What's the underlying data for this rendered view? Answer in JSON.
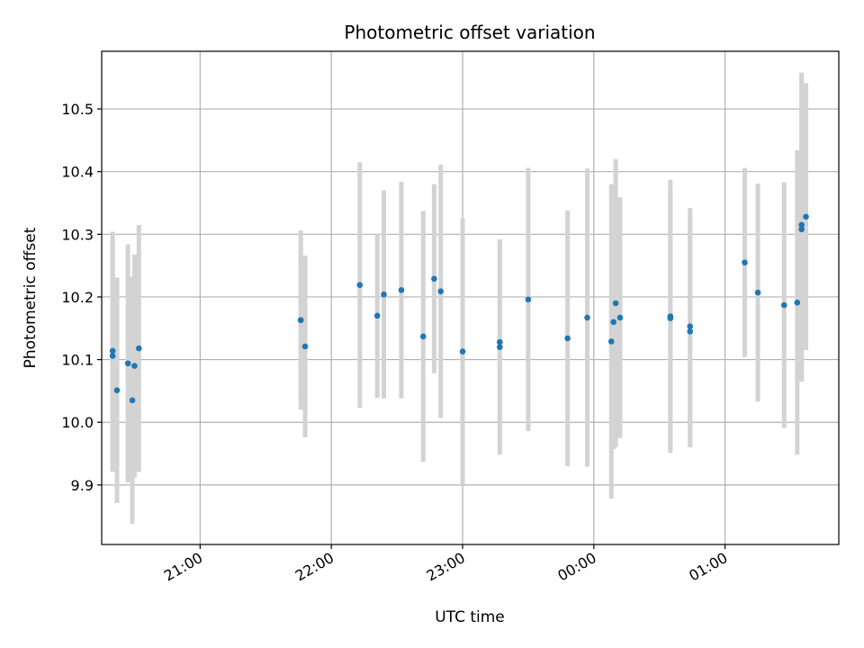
{
  "chart_data": {
    "type": "scatter",
    "title": "Photometric offset variation",
    "xlabel": "UTC time",
    "ylabel": "Photometric offset",
    "x_unit": "time",
    "xlim": [
      "20:15",
      "01:52"
    ],
    "ylim": [
      9.805,
      10.592
    ],
    "x_ticks": [
      "21:00",
      "22:00",
      "23:00",
      "00:00",
      "01:00"
    ],
    "y_ticks": [
      9.9,
      10.0,
      10.1,
      10.2,
      10.3,
      10.4,
      10.5
    ],
    "y_tick_labels": [
      "9.9",
      "10.0",
      "10.1",
      "10.2",
      "10.3",
      "10.4",
      "10.5"
    ],
    "grid": true,
    "marker_color": "#1f77b4",
    "errorbar_color": "#d3d3d3",
    "points": [
      {
        "time": "20:20",
        "y": 10.114,
        "err": 0.19
      },
      {
        "time": "20:20",
        "y": 10.106,
        "err": 0.185
      },
      {
        "time": "20:22",
        "y": 10.051,
        "err": 0.18
      },
      {
        "time": "20:27",
        "y": 10.094,
        "err": 0.19
      },
      {
        "time": "20:29",
        "y": 10.035,
        "err": 0.197
      },
      {
        "time": "20:30",
        "y": 10.09,
        "err": 0.178
      },
      {
        "time": "20:32",
        "y": 10.118,
        "err": 0.197
      },
      {
        "time": "21:46",
        "y": 10.163,
        "err": 0.143
      },
      {
        "time": "21:46",
        "y": 10.163,
        "err": 0.12
      },
      {
        "time": "21:48",
        "y": 10.121,
        "err": 0.145
      },
      {
        "time": "22:13",
        "y": 10.219,
        "err": 0.196
      },
      {
        "time": "22:21",
        "y": 10.17,
        "err": 0.131
      },
      {
        "time": "22:24",
        "y": 10.204,
        "err": 0.166
      },
      {
        "time": "22:32",
        "y": 10.211,
        "err": 0.173
      },
      {
        "time": "22:42",
        "y": 10.137,
        "err": 0.2
      },
      {
        "time": "22:47",
        "y": 10.229,
        "err": 0.151
      },
      {
        "time": "22:50",
        "y": 10.209,
        "err": 0.202
      },
      {
        "time": "23:00",
        "y": 10.113,
        "err": 0.213
      },
      {
        "time": "23:17",
        "y": 10.128,
        "err": 0.163
      },
      {
        "time": "23:17",
        "y": 10.12,
        "err": 0.172
      },
      {
        "time": "23:30",
        "y": 10.196,
        "err": 0.21
      },
      {
        "time": "23:48",
        "y": 10.134,
        "err": 0.204
      },
      {
        "time": "23:57",
        "y": 10.167,
        "err": 0.238
      },
      {
        "time": "00:08",
        "y": 10.129,
        "err": 0.251
      },
      {
        "time": "00:09",
        "y": 10.16,
        "err": 0.203
      },
      {
        "time": "00:10",
        "y": 10.19,
        "err": 0.23
      },
      {
        "time": "00:12",
        "y": 10.167,
        "err": 0.192
      },
      {
        "time": "00:35",
        "y": 10.169,
        "err": 0.218
      },
      {
        "time": "00:35",
        "y": 10.166,
        "err": 0.205
      },
      {
        "time": "00:44",
        "y": 10.153,
        "err": 0.189
      },
      {
        "time": "00:44",
        "y": 10.145,
        "err": 0.185
      },
      {
        "time": "01:09",
        "y": 10.255,
        "err": 0.151
      },
      {
        "time": "01:15",
        "y": 10.207,
        "err": 0.174
      },
      {
        "time": "01:27",
        "y": 10.187,
        "err": 0.196
      },
      {
        "time": "01:33",
        "y": 10.191,
        "err": 0.243
      },
      {
        "time": "01:35",
        "y": 10.315,
        "err": 0.243
      },
      {
        "time": "01:35",
        "y": 10.308,
        "err": 0.243
      },
      {
        "time": "01:37",
        "y": 10.328,
        "err": 0.213
      }
    ]
  }
}
